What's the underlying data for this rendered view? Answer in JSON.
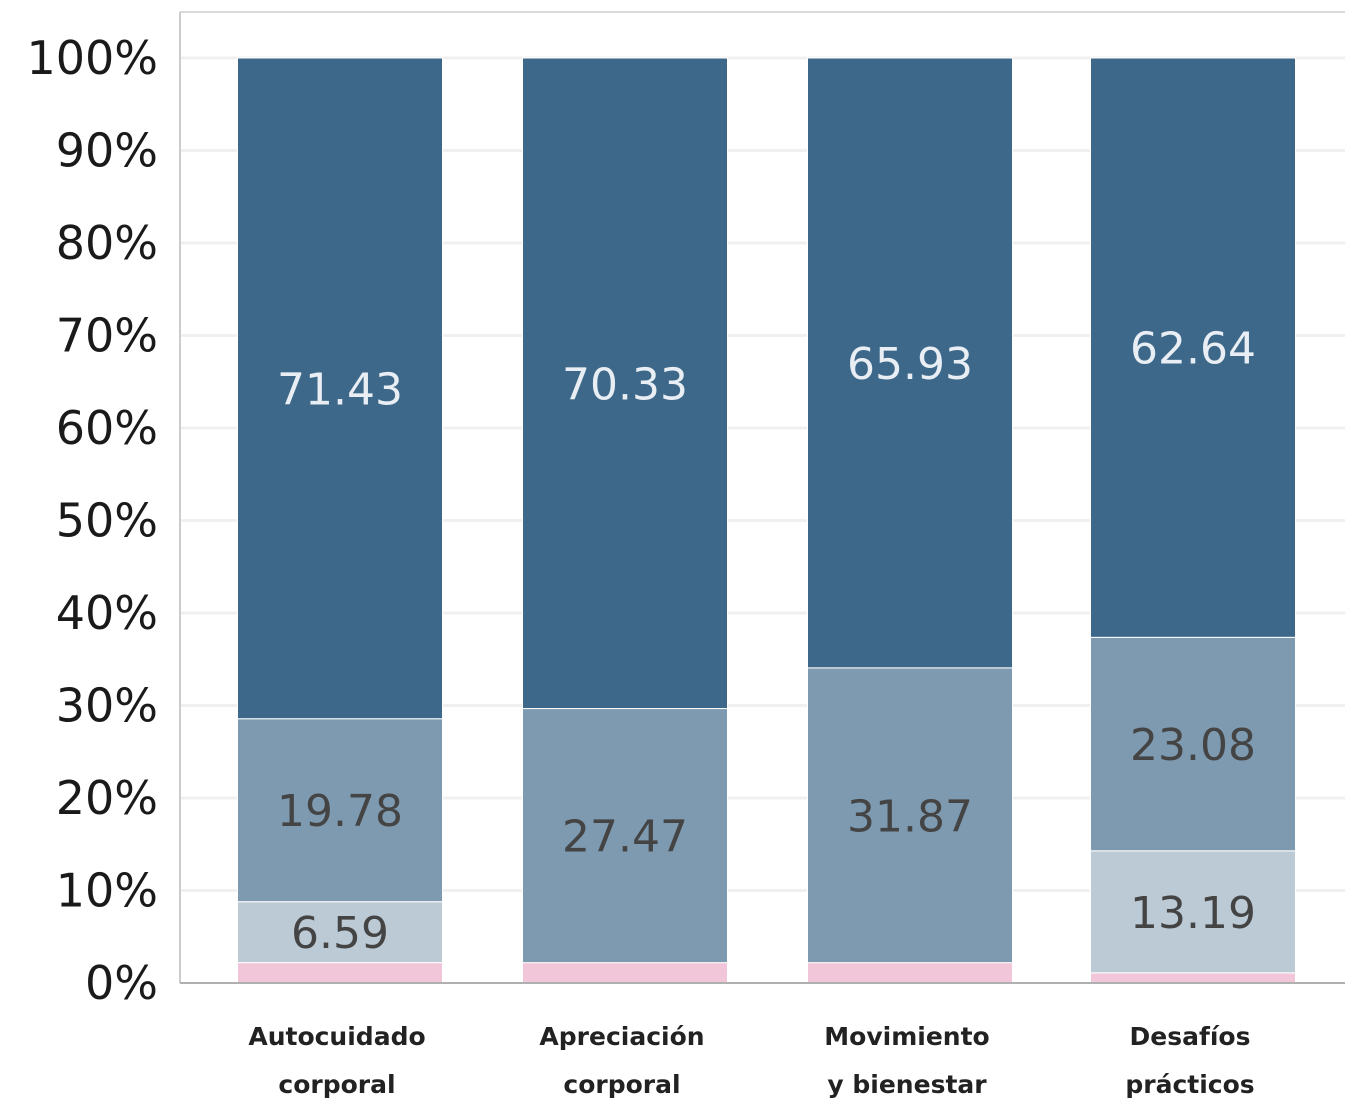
{
  "chart_data": {
    "type": "bar",
    "stacked": true,
    "categories": [
      [
        "Autocuidado",
        "corporal"
      ],
      [
        "Apreciación",
        "corporal"
      ],
      [
        "Movimiento",
        "y bienestar"
      ],
      [
        "Desafíos",
        "prácticos"
      ]
    ],
    "series": [
      {
        "values": [
          2.2,
          2.2,
          2.2,
          1.1
        ],
        "color": "#f2c6d9",
        "labels": [
          "",
          "",
          "",
          ""
        ]
      },
      {
        "values": [
          6.59,
          0.0,
          0.0,
          13.19
        ],
        "color": "#bccad6",
        "labels": [
          "6.59",
          "",
          "",
          "13.19"
        ]
      },
      {
        "values": [
          19.78,
          27.47,
          31.87,
          23.08
        ],
        "color": "#7e9ab0",
        "labels": [
          "19.78",
          "27.47",
          "31.87",
          "23.08"
        ]
      },
      {
        "values": [
          71.43,
          70.33,
          65.93,
          62.64
        ],
        "color": "#3d6889",
        "labels": [
          "71.43",
          "70.33",
          "65.93",
          "62.64"
        ]
      }
    ],
    "yticks": [
      "0%",
      "10%",
      "20%",
      "30%",
      "40%",
      "50%",
      "60%",
      "70%",
      "80%",
      "90%",
      "100%"
    ],
    "ylim": [
      0,
      100
    ],
    "grid": true,
    "legend": "none",
    "title": "",
    "xlabel": "",
    "ylabel": ""
  }
}
